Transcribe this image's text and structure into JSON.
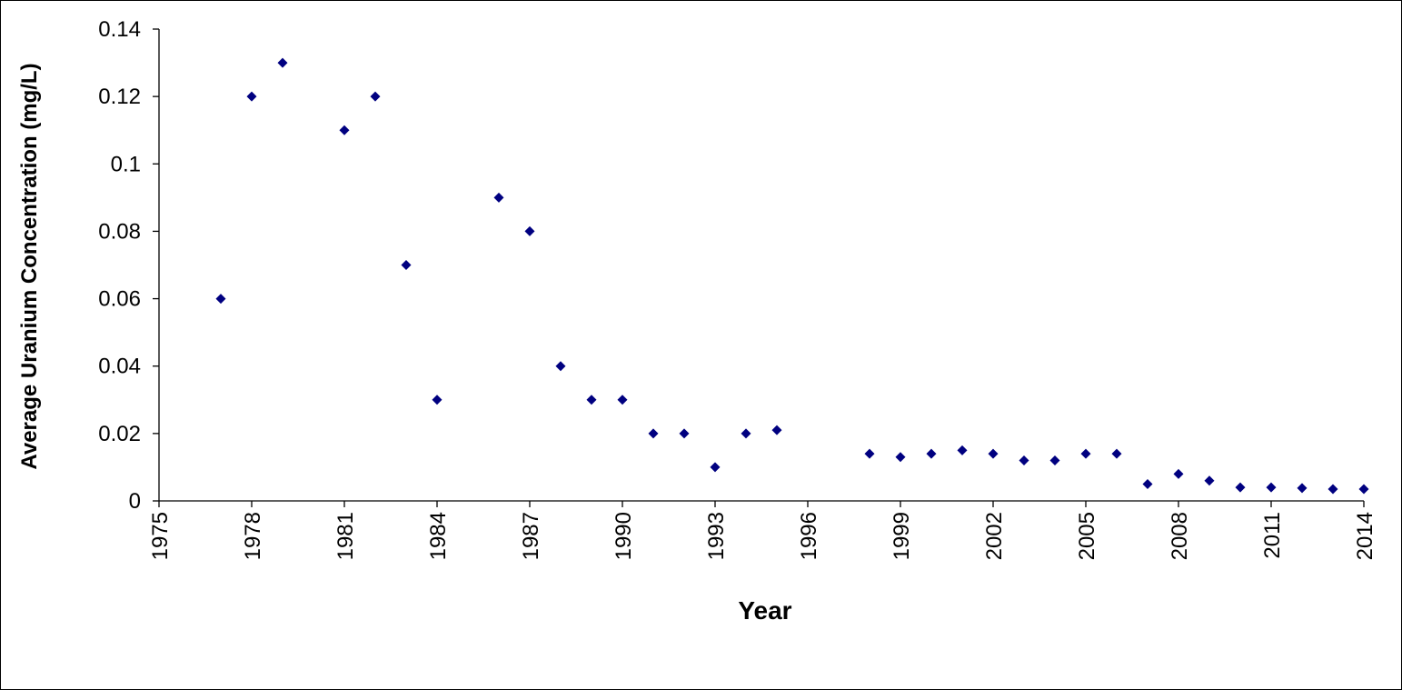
{
  "chart_data": {
    "type": "scatter",
    "title": "",
    "xlabel": "Year",
    "ylabel": "Average Uranium Concentration (mg/L)",
    "xlim": [
      1975,
      2014
    ],
    "ylim": [
      0,
      0.14
    ],
    "x_ticks": [
      "1975",
      "1978",
      "1981",
      "1984",
      "1987",
      "1990",
      "1993",
      "1996",
      "1999",
      "2002",
      "2005",
      "2008",
      "2011",
      "2014"
    ],
    "y_ticks": [
      "0",
      "0.02",
      "0.04",
      "0.06",
      "0.08",
      "0.1",
      "0.12",
      "0.14"
    ],
    "grid": false,
    "legend": "none",
    "marker": "diamond",
    "color": "#000080",
    "series": [
      {
        "x": [
          1977,
          1978,
          1979,
          1981,
          1982,
          1983,
          1984,
          1986,
          1987,
          1988,
          1989,
          1990,
          1991,
          1992,
          1993,
          1994,
          1995,
          1998,
          1999,
          2000,
          2001,
          2002,
          2003,
          2004,
          2005,
          2006,
          2007,
          2008,
          2009,
          2010,
          2011,
          2012,
          2013,
          2014
        ],
        "y": [
          0.06,
          0.12,
          0.13,
          0.11,
          0.12,
          0.07,
          0.03,
          0.09,
          0.08,
          0.04,
          0.03,
          0.03,
          0.02,
          0.02,
          0.01,
          0.02,
          0.021,
          0.014,
          0.013,
          0.014,
          0.015,
          0.014,
          0.012,
          0.012,
          0.014,
          0.014,
          0.005,
          0.008,
          0.006,
          0.004,
          0.004,
          0.0038,
          0.0035,
          0.0035
        ]
      }
    ]
  }
}
